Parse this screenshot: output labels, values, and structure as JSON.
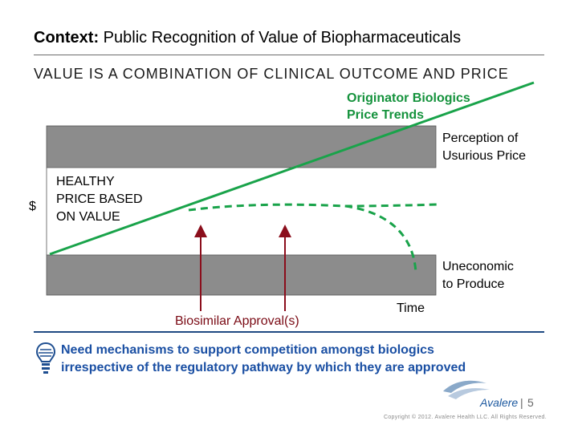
{
  "title": {
    "bold": "Context:",
    "rest": " Public Recognition of Value of Biopharmaceuticals"
  },
  "headline": "VALUE IS A COMBINATION OF CLINICAL OUTCOME AND PRICE",
  "diagram": {
    "originator_label_line1": "Originator Biologics",
    "originator_label_line2": "Price Trends",
    "usurious_line1": "Perception of",
    "usurious_line2": "Usurious Price",
    "uneconomic_line1": "Uneconomic",
    "uneconomic_line2": "to Produce",
    "healthy_line1": "HEALTHY",
    "healthy_line2": "PRICE BASED",
    "healthy_line3": "ON VALUE",
    "y_axis_label": "$",
    "x_axis_label": "Time",
    "biosimilar_label": "Biosimilar Approval(s)",
    "colors": {
      "trend": "#19a34a",
      "band": "#8c8c8c",
      "arrow": "#8b0e1c"
    }
  },
  "note": {
    "line1": "Need mechanisms to support competition amongst biologics",
    "line2": "irrespective of the regulatory pathway by which they are approved",
    "icon": "lightbulb-icon"
  },
  "footer": {
    "logo_text": "Avalere",
    "page_separator": "|",
    "page_number": "5",
    "copyright": "Copyright © 2012. Avalere Health LLC. All Rights Reserved."
  }
}
